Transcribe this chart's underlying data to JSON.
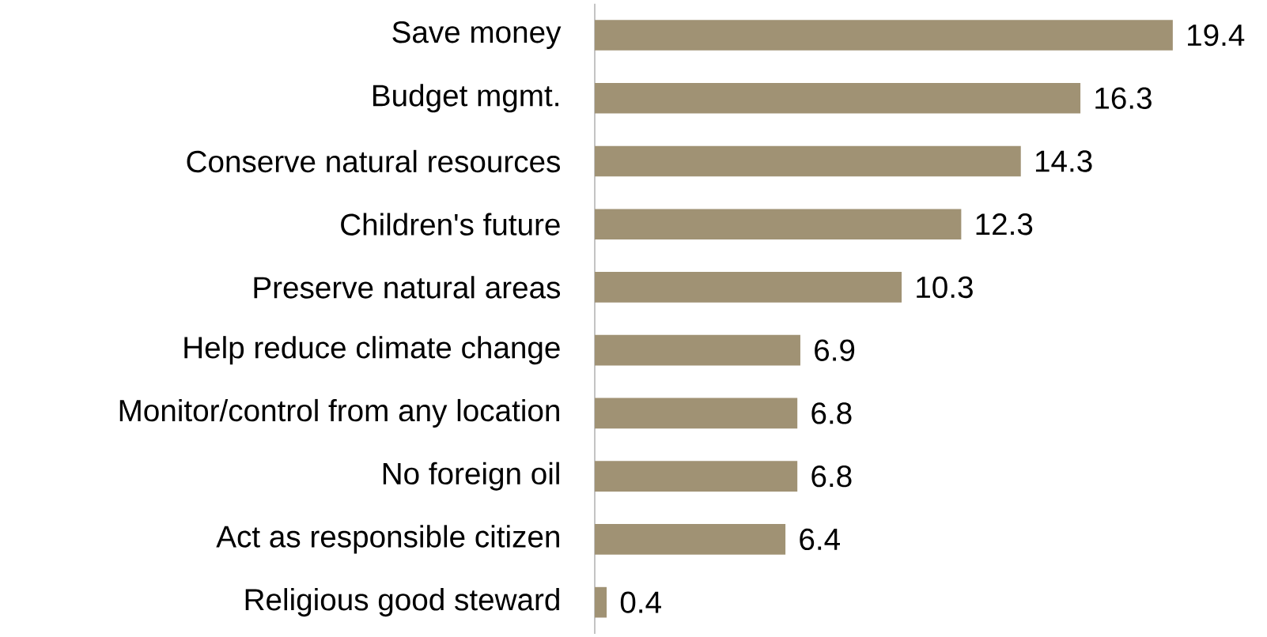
{
  "chart_data": {
    "type": "bar",
    "orientation": "horizontal",
    "categories": [
      "Save money",
      "Budget mgmt.",
      "Conserve natural resources",
      "Children's future",
      "Preserve natural areas",
      "Help reduce climate change",
      "Monitor/control from any location",
      "No foreign oil",
      "Act as responsible citizen",
      "Religious good steward"
    ],
    "values": [
      19.4,
      16.3,
      14.3,
      12.3,
      10.3,
      6.9,
      6.8,
      6.8,
      6.4,
      0.4
    ],
    "color": "#a09274",
    "data_labels": true
  }
}
